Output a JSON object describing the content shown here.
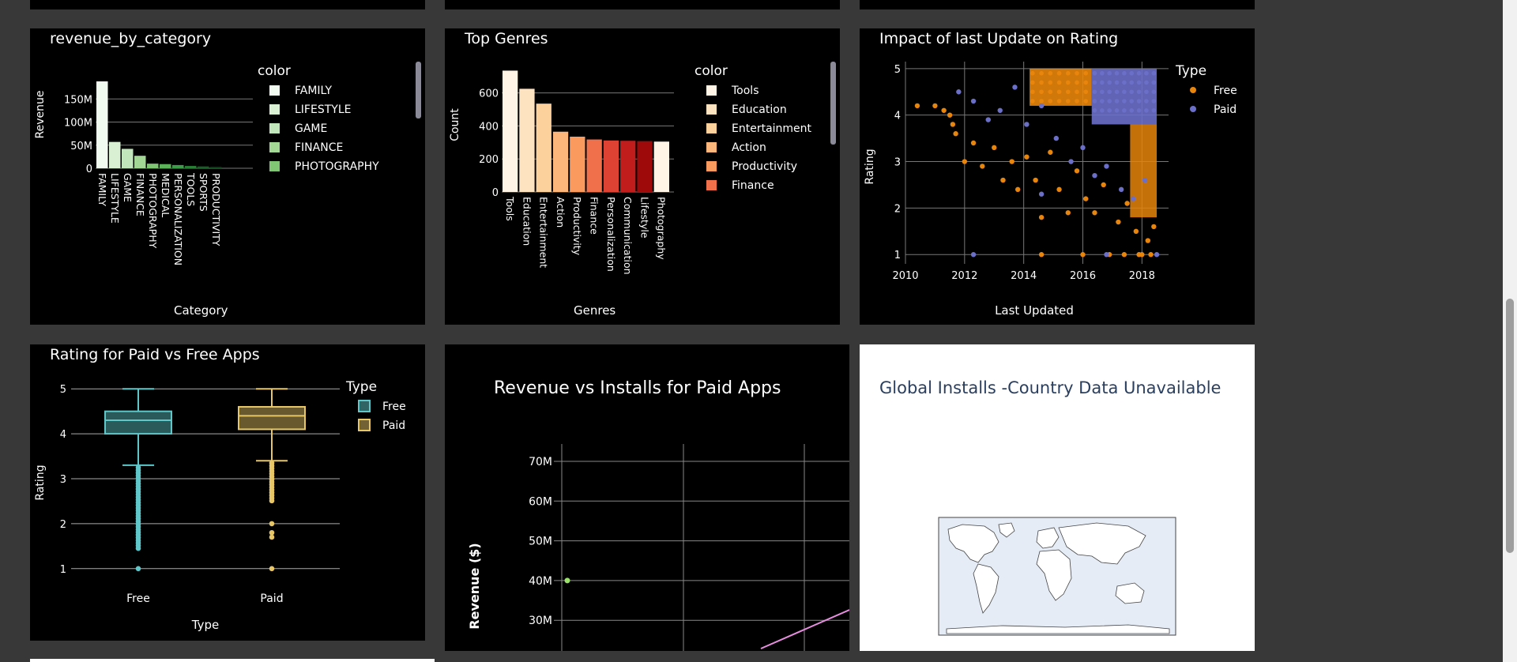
{
  "panels": {
    "revenue_by_category": {
      "title": "revenue_by_category",
      "xlabel": "Category",
      "ylabel": "Revenue",
      "legend_title": "color",
      "legend": [
        "FAMILY",
        "LIFESTYLE",
        "GAME",
        "FINANCE",
        "PHOTOGRAPHY"
      ],
      "yticks": [
        "0",
        "50M",
        "100M",
        "150M"
      ]
    },
    "top_genres": {
      "title": "Top Genres",
      "xlabel": "Genres",
      "ylabel": "Count",
      "legend_title": "color",
      "legend": [
        "Tools",
        "Education",
        "Entertainment",
        "Action",
        "Productivity",
        "Finance"
      ],
      "yticks": [
        "0",
        "200",
        "400",
        "600"
      ]
    },
    "impact": {
      "title": "Impact of last Update on Rating",
      "xlabel": "Last Updated",
      "ylabel": "Rating",
      "legend_title": "Type",
      "legend": [
        "Free",
        "Paid"
      ],
      "xticks": [
        "2010",
        "2012",
        "2014",
        "2016",
        "2018"
      ],
      "yticks": [
        "1",
        "2",
        "3",
        "4",
        "5"
      ]
    },
    "rating_box": {
      "title": "Rating for Paid vs Free Apps",
      "xlabel": "Type",
      "ylabel": "Rating",
      "legend_title": "Type",
      "legend": [
        "Free",
        "Paid"
      ],
      "yticks": [
        "1",
        "2",
        "3",
        "4",
        "5"
      ]
    },
    "rev_installs": {
      "title": "Revenue vs Installs for Paid Apps",
      "ylabel": "Revenue ($)",
      "yticks": [
        "30M",
        "40M",
        "50M",
        "60M",
        "70M"
      ]
    },
    "global_installs": {
      "title": "Global Installs -Country Data Unavailable"
    }
  },
  "colors": {
    "free": "#e8850c",
    "paid": "#6b6fc8",
    "box_free": "#5fc7c9",
    "box_paid": "#e6c667",
    "page_bg": "#383838"
  },
  "chart_data": [
    {
      "type": "bar",
      "title": "revenue_by_category",
      "categories": [
        "FAMILY",
        "LIFESTYLE",
        "GAME",
        "FINANCE",
        "PHOTOGRAPHY",
        "MEDICAL",
        "PERSONALIZATION",
        "TOOLS",
        "SPORTS",
        "PRODUCTIVITY"
      ],
      "values": [
        188000000,
        57000000,
        42000000,
        27000000,
        10000000,
        9000000,
        7000000,
        5000000,
        4000000,
        3000000
      ],
      "colors": [
        "#f2fbef",
        "#d9f0d3",
        "#c2e6bb",
        "#a3d795",
        "#80c574",
        "#5cb35a",
        "#3d9c48",
        "#288034",
        "#165f26",
        "#0b4418"
      ],
      "xlabel": "Category",
      "ylabel": "Revenue",
      "ylim": [
        0,
        200000000
      ],
      "legend": "right",
      "grid": true
    },
    {
      "type": "bar",
      "title": "Top Genres",
      "categories": [
        "Tools",
        "Education",
        "Entertainment",
        "Action",
        "Productivity",
        "Finance",
        "Personalization",
        "Communication",
        "Lifestyle",
        "Photography"
      ],
      "values": [
        735,
        625,
        535,
        365,
        335,
        318,
        312,
        310,
        308,
        305
      ],
      "colors": [
        "#fff4e6",
        "#fde3c0",
        "#fdd19b",
        "#fcb57a",
        "#fa9a5e",
        "#f0704b",
        "#dd4232",
        "#c11d1d",
        "#9e0a0a",
        "#fff4e6"
      ],
      "xlabel": "Genres",
      "ylabel": "Count",
      "ylim": [
        0,
        780
      ],
      "legend": "right",
      "grid": true
    },
    {
      "type": "scatter",
      "title": "Impact of last Update on Rating",
      "xlabel": "Last Updated",
      "ylabel": "Rating",
      "xlim": [
        2010,
        2018.9
      ],
      "ylim": [
        0.8,
        5.15
      ],
      "series": [
        {
          "name": "Free",
          "color": "#e8850c",
          "points": [
            [
              2010.4,
              4.2
            ],
            [
              2011.0,
              4.2
            ],
            [
              2011.3,
              4.1
            ],
            [
              2011.5,
              4.0
            ],
            [
              2011.6,
              3.8
            ],
            [
              2011.7,
              3.6
            ],
            [
              2012.0,
              3.0
            ],
            [
              2012.3,
              3.4
            ],
            [
              2012.6,
              2.9
            ],
            [
              2013.0,
              3.3
            ],
            [
              2013.3,
              2.6
            ],
            [
              2013.6,
              3.0
            ],
            [
              2013.8,
              2.4
            ],
            [
              2014.1,
              3.1
            ],
            [
              2014.4,
              2.6
            ],
            [
              2014.6,
              1.8
            ],
            [
              2014.9,
              3.2
            ],
            [
              2015.2,
              2.4
            ],
            [
              2015.5,
              1.9
            ],
            [
              2015.8,
              2.8
            ],
            [
              2016.1,
              2.2
            ],
            [
              2016.4,
              1.9
            ],
            [
              2016.7,
              2.5
            ],
            [
              2016.9,
              1.0
            ],
            [
              2017.2,
              1.7
            ],
            [
              2017.5,
              2.1
            ],
            [
              2017.8,
              1.5
            ],
            [
              2018.0,
              1.0
            ],
            [
              2018.2,
              1.3
            ],
            [
              2018.4,
              1.6
            ],
            [
              2014.6,
              1.0
            ],
            [
              2016.0,
              1.0
            ],
            [
              2017.4,
              1.0
            ],
            [
              2017.9,
              1.0
            ],
            [
              2018.3,
              1.0
            ]
          ]
        },
        {
          "name": "Paid",
          "color": "#6b6fc8",
          "points": [
            [
              2011.8,
              4.5
            ],
            [
              2012.3,
              4.3
            ],
            [
              2012.8,
              3.9
            ],
            [
              2013.2,
              4.1
            ],
            [
              2013.7,
              4.6
            ],
            [
              2014.1,
              3.8
            ],
            [
              2014.6,
              4.2
            ],
            [
              2015.1,
              3.5
            ],
            [
              2015.6,
              3.0
            ],
            [
              2016.0,
              3.3
            ],
            [
              2016.4,
              2.7
            ],
            [
              2016.8,
              2.9
            ],
            [
              2017.3,
              2.4
            ],
            [
              2017.7,
              2.2
            ],
            [
              2018.1,
              2.6
            ],
            [
              2012.3,
              1.0
            ],
            [
              2014.6,
              2.3
            ],
            [
              2016.8,
              1.0
            ],
            [
              2018.5,
              1.0
            ]
          ]
        }
      ],
      "legend": "right",
      "grid": true
    },
    {
      "type": "box",
      "title": "Rating for Paid vs Free Apps",
      "xlabel": "Type",
      "ylabel": "Rating",
      "categories": [
        "Free",
        "Paid"
      ],
      "ylim": [
        0.75,
        5.25
      ],
      "series": [
        {
          "name": "Free",
          "color": "#5fc7c9",
          "min": 3.3,
          "q1": 4.0,
          "median": 4.3,
          "q3": 4.5,
          "max": 5.0
        },
        {
          "name": "Paid",
          "color": "#e6c667",
          "min": 3.4,
          "q1": 4.1,
          "median": 4.4,
          "q3": 4.6,
          "max": 5.0
        }
      ],
      "legend": "right",
      "grid": true
    },
    {
      "type": "scatter",
      "title": "Revenue vs Installs for Paid Apps",
      "ylabel": "Revenue ($)",
      "ylim": [
        25000000,
        75000000
      ],
      "points": [
        [
          0.05,
          40000000
        ]
      ],
      "trendline": true,
      "grid": true
    }
  ]
}
